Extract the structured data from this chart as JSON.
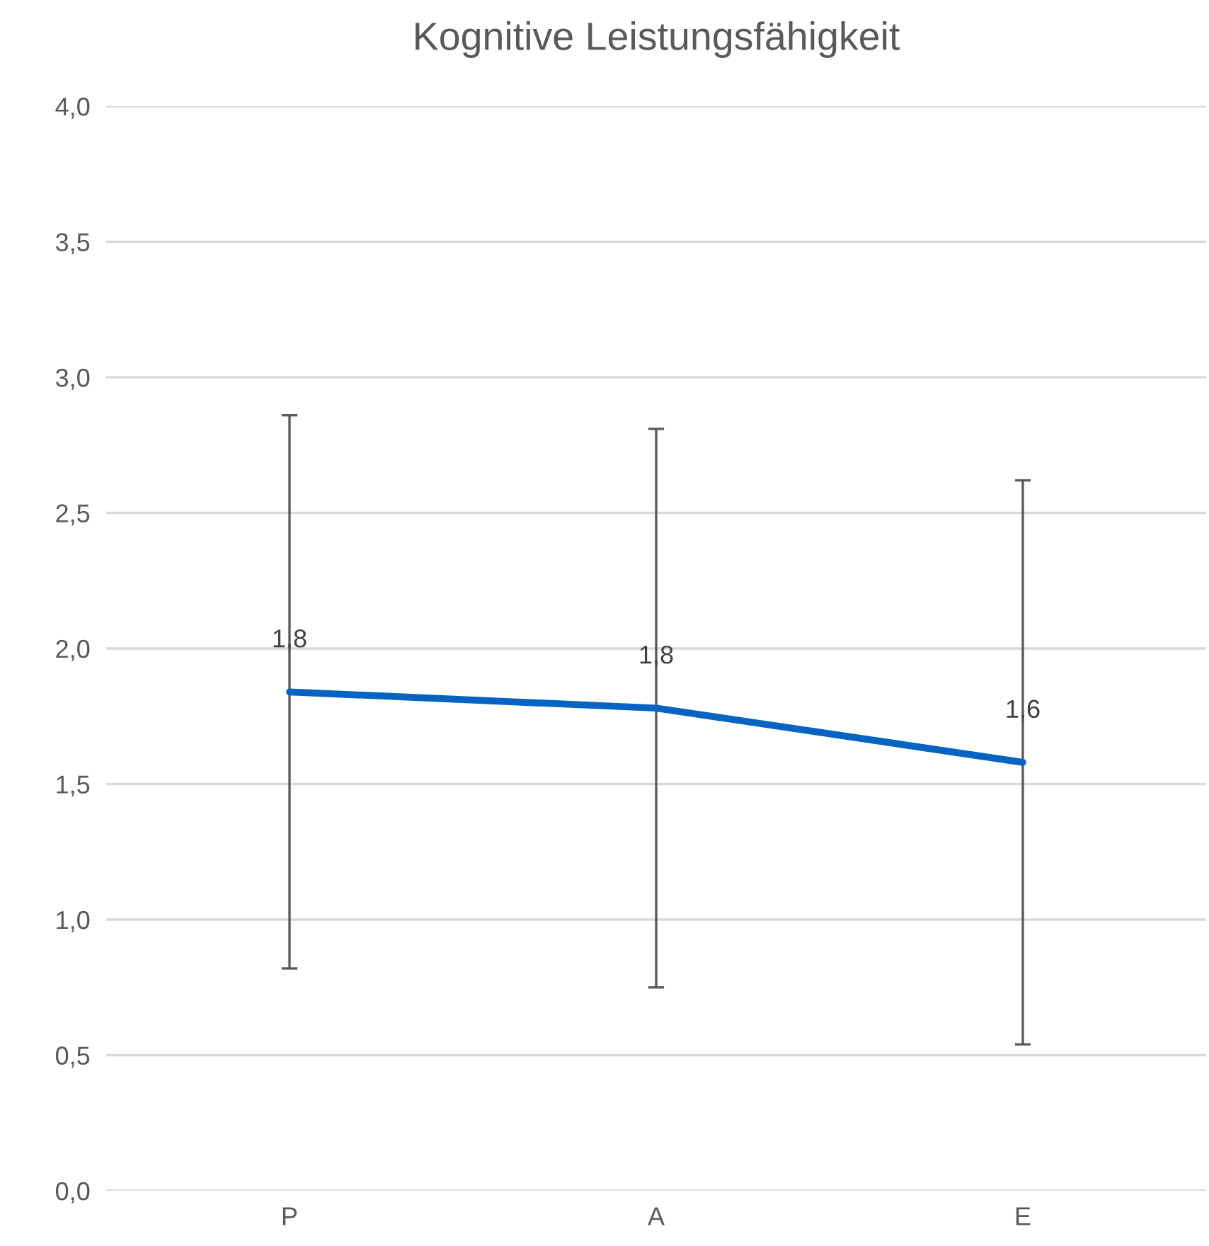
{
  "chart_data": {
    "type": "line",
    "title": "Kognitive Leistungsfähigkeit",
    "categories": [
      "P",
      "A",
      "E"
    ],
    "series": [
      {
        "color": "#0563c1",
        "values": [
          1.84,
          1.78,
          1.58
        ],
        "errors": [
          1.02,
          1.03,
          1.04
        ],
        "value_labels": [
          "1,8",
          "1,8",
          "1,6"
        ]
      }
    ],
    "ylim": [
      0,
      4
    ],
    "yticks": [
      {
        "value": 0,
        "label": "0,0"
      },
      {
        "value": 0.5,
        "label": "0,5"
      },
      {
        "value": 1,
        "label": "1,0"
      },
      {
        "value": 1.5,
        "label": "1,5"
      },
      {
        "value": 2,
        "label": "2,0"
      },
      {
        "value": 2.5,
        "label": "2,5"
      },
      {
        "value": 3,
        "label": "3,0"
      },
      {
        "value": 3.5,
        "label": "3,5"
      },
      {
        "value": 4,
        "label": "4,0"
      }
    ],
    "grid": "y",
    "marker": "none",
    "line_style": "solid",
    "legend": false
  }
}
